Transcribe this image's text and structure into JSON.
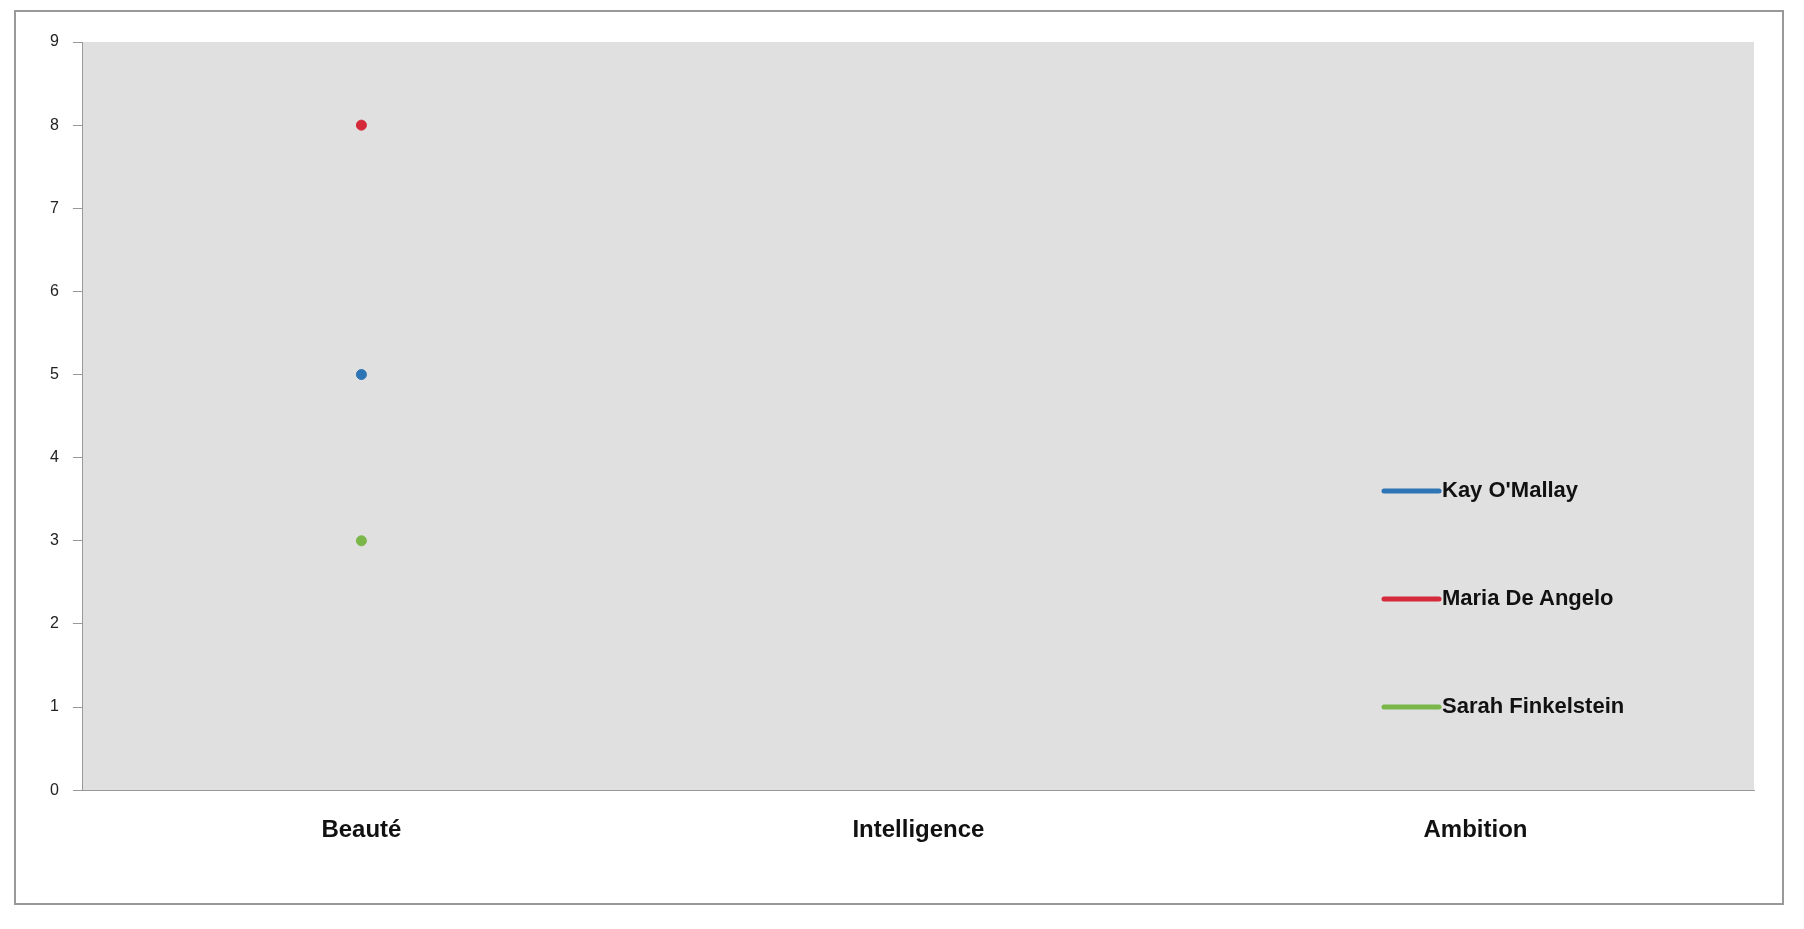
{
  "chart_data": {
    "type": "line",
    "categories": [
      "Beauté",
      "Intelligence",
      "Ambition"
    ],
    "series": [
      {
        "name": "Kay O'Mallay",
        "color": "#2e75b6",
        "values": [
          5,
          null,
          null
        ]
      },
      {
        "name": "Maria De Angelo",
        "color": "#d42a3a",
        "values": [
          8,
          null,
          null
        ]
      },
      {
        "name": "Sarah Finkelstein",
        "color": "#7ab648",
        "values": [
          3,
          null,
          null
        ]
      }
    ],
    "ylim": [
      0,
      9
    ],
    "yticks": [
      0,
      1,
      2,
      3,
      4,
      5,
      6,
      7,
      8,
      9
    ],
    "grid": false,
    "legend": "right",
    "marker": "circle"
  }
}
